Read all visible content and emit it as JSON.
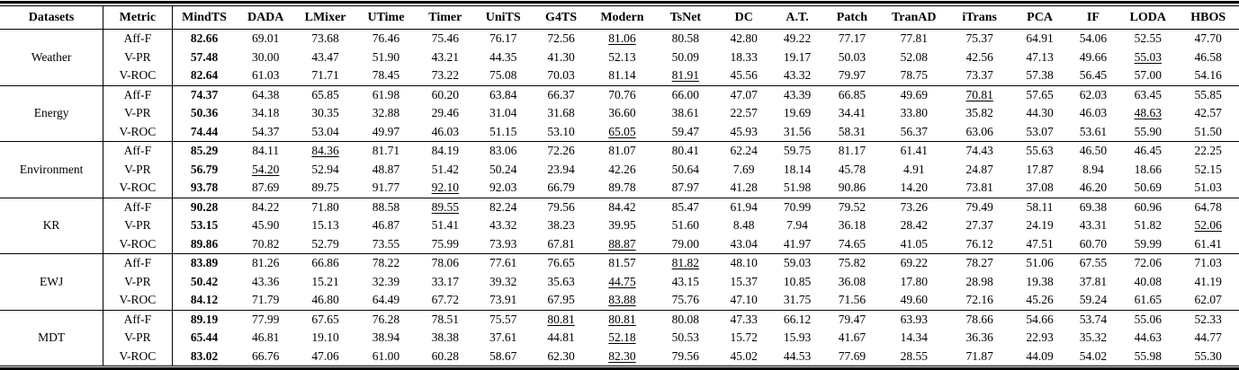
{
  "table": {
    "headers": [
      "Datasets",
      "Metric",
      "MindTS",
      "DADA",
      "LMixer",
      "UTime",
      "Timer",
      "UniTS",
      "G4TS",
      "Modern",
      "TsNet",
      "DC",
      "A.T.",
      "Patch",
      "TranAD",
      "iTrans",
      "PCA",
      "IF",
      "LODA",
      "HBOS"
    ],
    "groups": [
      {
        "dataset": "Weather",
        "rows": [
          {
            "metric": "Aff-F",
            "values": [
              "82.66",
              "69.01",
              "73.68",
              "76.46",
              "75.46",
              "76.17",
              "72.56",
              "81.06",
              "80.58",
              "42.80",
              "49.22",
              "77.17",
              "77.81",
              "75.37",
              "64.91",
              "54.06",
              "52.55",
              "47.70"
            ],
            "bold": [
              0
            ],
            "underline": [
              7
            ]
          },
          {
            "metric": "V-PR",
            "values": [
              "57.48",
              "30.00",
              "43.47",
              "51.90",
              "43.21",
              "44.35",
              "41.30",
              "52.13",
              "50.09",
              "18.33",
              "19.17",
              "50.03",
              "52.08",
              "42.56",
              "47.13",
              "49.66",
              "55.03",
              "46.58"
            ],
            "bold": [
              0
            ],
            "underline": [
              16
            ]
          },
          {
            "metric": "V-ROC",
            "values": [
              "82.64",
              "61.03",
              "71.71",
              "78.45",
              "73.22",
              "75.08",
              "70.03",
              "81.14",
              "81.91",
              "45.56",
              "43.32",
              "79.97",
              "78.75",
              "73.37",
              "57.38",
              "56.45",
              "57.00",
              "54.16"
            ],
            "bold": [
              0
            ],
            "underline": [
              8
            ]
          }
        ]
      },
      {
        "dataset": "Energy",
        "rows": [
          {
            "metric": "Aff-F",
            "values": [
              "74.37",
              "64.38",
              "65.85",
              "61.98",
              "60.20",
              "63.84",
              "66.37",
              "70.76",
              "66.00",
              "47.07",
              "43.39",
              "66.85",
              "49.69",
              "70.81",
              "57.65",
              "62.03",
              "63.45",
              "55.85"
            ],
            "bold": [
              0
            ],
            "underline": [
              13
            ]
          },
          {
            "metric": "V-PR",
            "values": [
              "50.36",
              "34.18",
              "30.35",
              "32.88",
              "29.46",
              "31.04",
              "31.68",
              "36.60",
              "38.61",
              "22.57",
              "19.69",
              "34.41",
              "33.80",
              "35.82",
              "44.30",
              "46.03",
              "48.63",
              "42.57"
            ],
            "bold": [
              0
            ],
            "underline": [
              16
            ]
          },
          {
            "metric": "V-ROC",
            "values": [
              "74.44",
              "54.37",
              "53.04",
              "49.97",
              "46.03",
              "51.15",
              "53.10",
              "65.05",
              "59.47",
              "45.93",
              "31.56",
              "58.31",
              "56.37",
              "63.06",
              "53.07",
              "53.61",
              "55.90",
              "51.50"
            ],
            "bold": [
              0
            ],
            "underline": [
              7
            ]
          }
        ]
      },
      {
        "dataset": "Environment",
        "rows": [
          {
            "metric": "Aff-F",
            "values": [
              "85.29",
              "84.11",
              "84.36",
              "81.71",
              "84.19",
              "83.06",
              "72.26",
              "81.07",
              "80.41",
              "62.24",
              "59.75",
              "81.17",
              "61.41",
              "74.43",
              "55.63",
              "46.50",
              "46.45",
              "22.25"
            ],
            "bold": [
              0
            ],
            "underline": [
              2
            ]
          },
          {
            "metric": "V-PR",
            "values": [
              "56.79",
              "54.20",
              "52.94",
              "48.87",
              "51.42",
              "50.24",
              "23.94",
              "42.26",
              "50.64",
              "7.69",
              "18.14",
              "45.78",
              "4.91",
              "24.87",
              "17.87",
              "8.94",
              "18.66",
              "52.15"
            ],
            "bold": [
              0
            ],
            "underline": [
              1
            ]
          },
          {
            "metric": "V-ROC",
            "values": [
              "93.78",
              "87.69",
              "89.75",
              "91.77",
              "92.10",
              "92.03",
              "66.79",
              "89.78",
              "87.97",
              "41.28",
              "51.98",
              "90.86",
              "14.20",
              "73.81",
              "37.08",
              "46.20",
              "50.69",
              "51.03"
            ],
            "bold": [
              0
            ],
            "underline": [
              4
            ]
          }
        ]
      },
      {
        "dataset": "KR",
        "rows": [
          {
            "metric": "Aff-F",
            "values": [
              "90.28",
              "84.22",
              "71.80",
              "88.58",
              "89.55",
              "82.24",
              "79.56",
              "84.42",
              "85.47",
              "61.94",
              "70.99",
              "79.52",
              "73.26",
              "79.49",
              "58.11",
              "69.38",
              "60.96",
              "64.78"
            ],
            "bold": [
              0
            ],
            "underline": [
              4
            ]
          },
          {
            "metric": "V-PR",
            "values": [
              "53.15",
              "45.90",
              "15.13",
              "46.87",
              "51.41",
              "43.32",
              "38.23",
              "39.95",
              "51.60",
              "8.48",
              "7.94",
              "36.18",
              "28.42",
              "27.37",
              "24.19",
              "43.31",
              "51.82",
              "52.06"
            ],
            "bold": [
              0
            ],
            "underline": [
              17
            ]
          },
          {
            "metric": "V-ROC",
            "values": [
              "89.86",
              "70.82",
              "52.79",
              "73.55",
              "75.99",
              "73.93",
              "67.81",
              "88.87",
              "79.00",
              "43.04",
              "41.97",
              "74.65",
              "41.05",
              "76.12",
              "47.51",
              "60.70",
              "59.99",
              "61.41"
            ],
            "bold": [
              0
            ],
            "underline": [
              7
            ]
          }
        ]
      },
      {
        "dataset": "EWJ",
        "rows": [
          {
            "metric": "Aff-F",
            "values": [
              "83.89",
              "81.26",
              "66.86",
              "78.22",
              "78.06",
              "77.61",
              "76.65",
              "81.57",
              "81.82",
              "48.10",
              "59.03",
              "75.82",
              "69.22",
              "78.27",
              "51.06",
              "67.55",
              "72.06",
              "71.03"
            ],
            "bold": [
              0
            ],
            "underline": [
              8
            ]
          },
          {
            "metric": "V-PR",
            "values": [
              "50.42",
              "43.36",
              "15.21",
              "32.39",
              "33.17",
              "39.32",
              "35.63",
              "44.75",
              "43.15",
              "15.37",
              "10.85",
              "36.08",
              "17.80",
              "28.98",
              "19.38",
              "37.81",
              "40.08",
              "41.19"
            ],
            "bold": [
              0
            ],
            "underline": [
              7
            ]
          },
          {
            "metric": "V-ROC",
            "values": [
              "84.12",
              "71.79",
              "46.80",
              "64.49",
              "67.72",
              "73.91",
              "67.95",
              "83.88",
              "75.76",
              "47.10",
              "31.75",
              "71.56",
              "49.60",
              "72.16",
              "45.26",
              "59.24",
              "61.65",
              "62.07"
            ],
            "bold": [
              0
            ],
            "underline": [
              7
            ]
          }
        ]
      },
      {
        "dataset": "MDT",
        "rows": [
          {
            "metric": "Aff-F",
            "values": [
              "89.19",
              "77.99",
              "67.65",
              "76.28",
              "78.51",
              "75.57",
              "80.81",
              "80.81",
              "80.08",
              "47.33",
              "66.12",
              "79.47",
              "63.93",
              "78.66",
              "54.66",
              "53.74",
              "55.06",
              "52.33"
            ],
            "bold": [
              0
            ],
            "underline": [
              6,
              7
            ]
          },
          {
            "metric": "V-PR",
            "values": [
              "65.44",
              "46.81",
              "19.10",
              "38.94",
              "38.38",
              "37.61",
              "44.81",
              "52.18",
              "50.53",
              "15.72",
              "15.93",
              "41.67",
              "14.34",
              "36.36",
              "22.93",
              "35.32",
              "44.63",
              "44.77"
            ],
            "bold": [
              0
            ],
            "underline": [
              7
            ]
          },
          {
            "metric": "V-ROC",
            "values": [
              "83.02",
              "66.76",
              "47.06",
              "61.00",
              "60.28",
              "58.67",
              "62.30",
              "82.30",
              "79.56",
              "45.02",
              "44.53",
              "77.69",
              "28.55",
              "71.87",
              "44.09",
              "54.02",
              "55.98",
              "55.30"
            ],
            "bold": [
              0
            ],
            "underline": [
              7
            ]
          }
        ]
      }
    ]
  }
}
